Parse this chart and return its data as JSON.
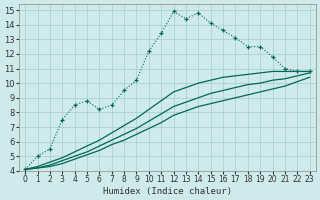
{
  "xlabel": "Humidex (Indice chaleur)",
  "ylabel": "",
  "bg_color": "#ceeaea",
  "grid_color": "#aed0d0",
  "line_color": "#006858",
  "xlim": [
    -0.5,
    23.5
  ],
  "ylim": [
    4,
    15.4
  ],
  "xticks": [
    0,
    1,
    2,
    3,
    4,
    5,
    6,
    7,
    8,
    9,
    10,
    11,
    12,
    13,
    14,
    15,
    16,
    17,
    18,
    19,
    20,
    21,
    22,
    23
  ],
  "yticks": [
    4,
    5,
    6,
    7,
    8,
    9,
    10,
    11,
    12,
    13,
    14,
    15
  ],
  "lines": [
    {
      "x": [
        0,
        1,
        2,
        3,
        4,
        5,
        6,
        7,
        8,
        9,
        10,
        11,
        12,
        13,
        14,
        15,
        16,
        17,
        18,
        19,
        20,
        21,
        22,
        23
      ],
      "y": [
        4.1,
        5.0,
        5.5,
        7.5,
        8.5,
        8.8,
        8.2,
        8.5,
        9.5,
        10.2,
        12.2,
        13.4,
        14.9,
        14.4,
        14.8,
        14.1,
        13.6,
        13.1,
        12.5,
        12.5,
        11.8,
        11.0,
        10.8,
        10.8
      ],
      "marker": true,
      "linestyle": ":"
    },
    {
      "x": [
        0,
        1,
        2,
        3,
        4,
        5,
        6,
        7,
        8,
        9,
        10,
        11,
        12,
        13,
        14,
        15,
        16,
        17,
        18,
        19,
        20,
        21,
        22,
        23
      ],
      "y": [
        4.1,
        4.3,
        4.6,
        4.9,
        5.3,
        5.7,
        6.1,
        6.6,
        7.1,
        7.6,
        8.2,
        8.8,
        9.4,
        9.7,
        10.0,
        10.2,
        10.4,
        10.5,
        10.6,
        10.7,
        10.8,
        10.8,
        10.8,
        10.8
      ],
      "marker": false,
      "linestyle": "-"
    },
    {
      "x": [
        0,
        1,
        2,
        3,
        4,
        5,
        6,
        7,
        8,
        9,
        10,
        11,
        12,
        13,
        14,
        15,
        16,
        17,
        18,
        19,
        20,
        21,
        22,
        23
      ],
      "y": [
        4.1,
        4.2,
        4.4,
        4.7,
        5.0,
        5.3,
        5.7,
        6.1,
        6.5,
        6.9,
        7.4,
        7.9,
        8.4,
        8.7,
        9.0,
        9.3,
        9.5,
        9.7,
        9.9,
        10.0,
        10.2,
        10.3,
        10.5,
        10.7
      ],
      "marker": false,
      "linestyle": "-"
    },
    {
      "x": [
        0,
        1,
        2,
        3,
        4,
        5,
        6,
        7,
        8,
        9,
        10,
        11,
        12,
        13,
        14,
        15,
        16,
        17,
        18,
        19,
        20,
        21,
        22,
        23
      ],
      "y": [
        4.1,
        4.2,
        4.3,
        4.5,
        4.8,
        5.1,
        5.4,
        5.8,
        6.1,
        6.5,
        6.9,
        7.3,
        7.8,
        8.1,
        8.4,
        8.6,
        8.8,
        9.0,
        9.2,
        9.4,
        9.6,
        9.8,
        10.1,
        10.4
      ],
      "marker": false,
      "linestyle": "-"
    }
  ]
}
